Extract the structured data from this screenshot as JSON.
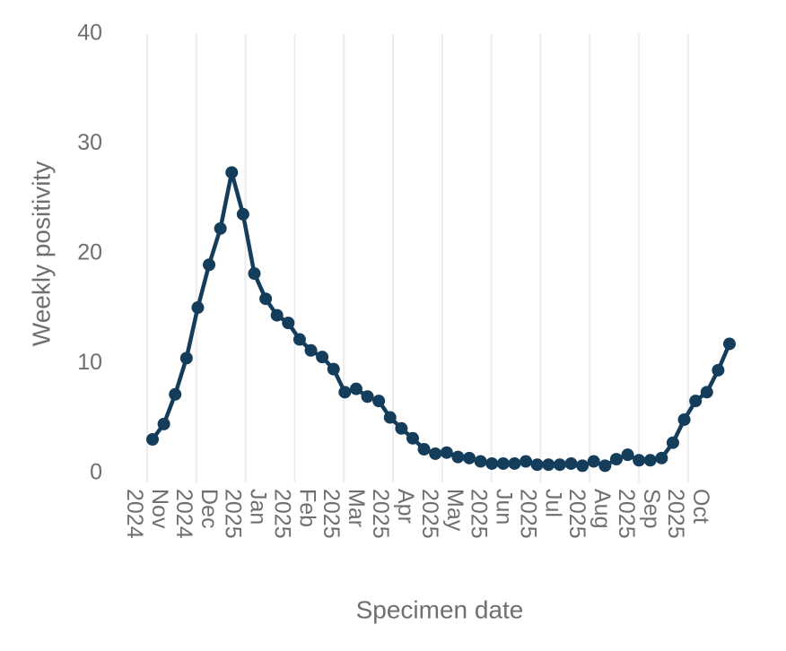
{
  "chart_data": {
    "type": "line",
    "ylabel": "Weekly positivity",
    "xlabel": "Specimen date",
    "ylim": [
      0,
      40
    ],
    "yticks": [
      0,
      10,
      20,
      30,
      40
    ],
    "xticks": [
      {
        "value": "2024-11",
        "label": "Nov 2024"
      },
      {
        "value": "2024-12",
        "label": "Dec 2024"
      },
      {
        "value": "2025-01",
        "label": "Jan 2025"
      },
      {
        "value": "2025-02",
        "label": "Feb 2025"
      },
      {
        "value": "2025-03",
        "label": "Mar 2025"
      },
      {
        "value": "2025-04",
        "label": "Apr 2025"
      },
      {
        "value": "2025-05",
        "label": "May 2025"
      },
      {
        "value": "2025-06",
        "label": "Jun 2025"
      },
      {
        "value": "2025-07",
        "label": "Jul 2025"
      },
      {
        "value": "2025-08",
        "label": "Aug 2025"
      },
      {
        "value": "2025-09",
        "label": "Sep 2025"
      },
      {
        "value": "2025-10",
        "label": "Oct 2025"
      }
    ],
    "grid": true,
    "color": "#143d5c",
    "values": [
      3.1,
      4.5,
      7.2,
      10.5,
      15.1,
      19.0,
      22.3,
      27.4,
      23.6,
      18.2,
      15.9,
      14.4,
      13.7,
      12.2,
      11.2,
      10.6,
      9.5,
      7.4,
      7.7,
      7.0,
      6.6,
      5.1,
      4.1,
      3.2,
      2.2,
      1.8,
      1.9,
      1.5,
      1.4,
      1.1,
      0.9,
      0.9,
      0.9,
      1.1,
      0.8,
      0.8,
      0.8,
      0.9,
      0.7,
      1.1,
      0.7,
      1.3,
      1.7,
      1.2,
      1.2,
      1.4,
      2.8,
      4.9,
      6.6,
      7.4,
      9.4,
      11.8
    ]
  }
}
